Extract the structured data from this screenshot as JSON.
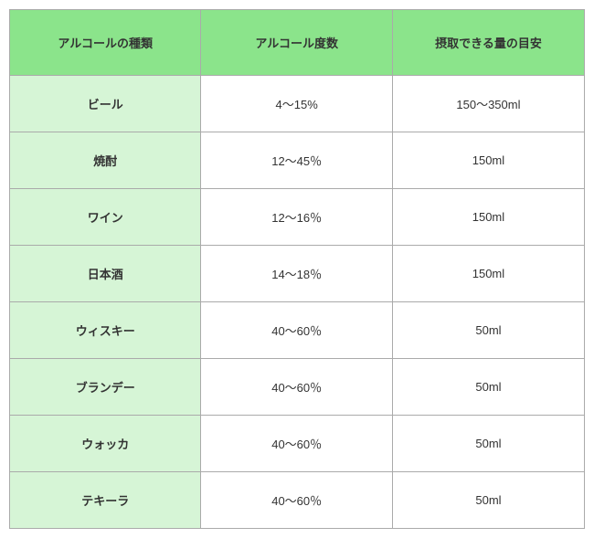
{
  "table": {
    "headers": {
      "type": "アルコールの種類",
      "abv": "アルコール度数",
      "amount": "摂取できる量の目安"
    },
    "rows": [
      {
        "type": "ビール",
        "abv": "4〜15%",
        "amount": "150〜350ml"
      },
      {
        "type": "焼酎",
        "abv": "12〜45％",
        "amount": "150ml"
      },
      {
        "type": "ワイン",
        "abv": "12〜16％",
        "amount": "150ml"
      },
      {
        "type": "日本酒",
        "abv": "14〜18％",
        "amount": "150ml"
      },
      {
        "type": "ウィスキー",
        "abv": "40〜60％",
        "amount": "50ml"
      },
      {
        "type": "ブランデー",
        "abv": "40〜60％",
        "amount": "50ml"
      },
      {
        "type": "ウォッカ",
        "abv": "40〜60％",
        "amount": "50ml"
      },
      {
        "type": "テキーラ",
        "abv": "40〜60％",
        "amount": "50ml"
      }
    ]
  },
  "colors": {
    "header_bg": "#8be48b",
    "type_col_bg": "#d6f5d6",
    "cell_bg": "#ffffff",
    "border": "#aaaaaa",
    "text": "#333333"
  }
}
